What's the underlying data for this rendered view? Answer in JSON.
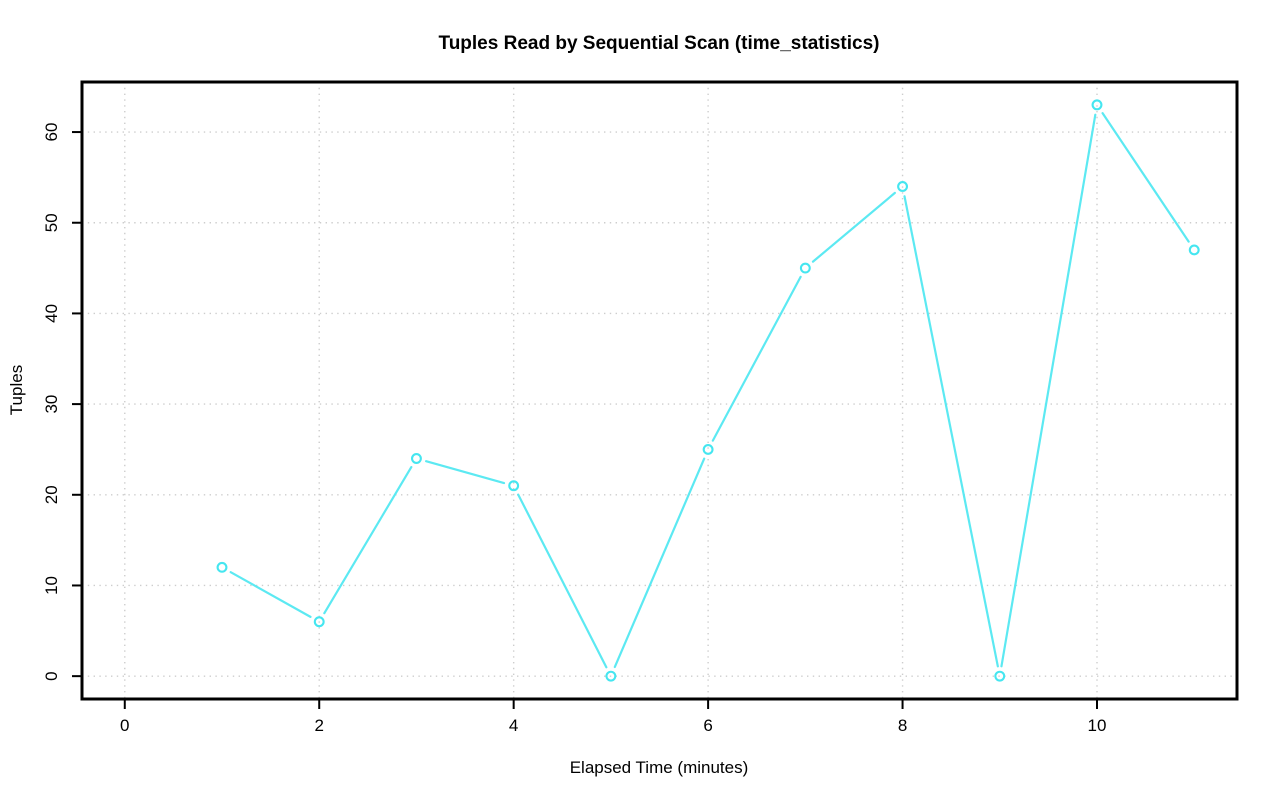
{
  "chart_data": {
    "type": "line",
    "title": "Tuples Read by Sequential Scan (time_statistics)",
    "xlabel": "Elapsed Time (minutes)",
    "ylabel": "Tuples",
    "x": [
      1,
      2,
      3,
      4,
      5,
      6,
      7,
      8,
      9,
      10,
      11
    ],
    "y": [
      12,
      6,
      24,
      21,
      0,
      25,
      45,
      54,
      0,
      63,
      47
    ],
    "x_ticks": [
      0,
      2,
      4,
      6,
      8,
      10
    ],
    "y_ticks": [
      0,
      10,
      20,
      30,
      40,
      50,
      60
    ],
    "xlim": [
      -0.44,
      11.44
    ],
    "ylim": [
      -2.52,
      65.52
    ],
    "grid": true,
    "grid_style": "dotted",
    "marker": "open-circle",
    "legend_position": "none",
    "colors": {
      "line": "#5ce9f2",
      "marker": "#45e6f0",
      "grid": "#cdcdcd",
      "axis": "#000000",
      "text": "#000000",
      "background": "#ffffff"
    }
  }
}
